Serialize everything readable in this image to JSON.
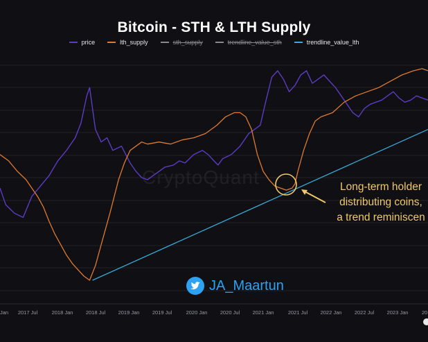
{
  "chart_data": {
    "type": "line",
    "title": "Bitcoin - STH & LTH Supply",
    "legend": [
      {
        "name": "price",
        "color": "#5b3cc4",
        "enabled": true
      },
      {
        "name": "lth_supply",
        "color": "#e07a2f",
        "enabled": true
      },
      {
        "name": "sth_supply",
        "color": "#8a8a8a",
        "enabled": false
      },
      {
        "name": "trendline_value_sth",
        "color": "#8a8a8a",
        "enabled": false
      },
      {
        "name": "trendline_value_lth",
        "color": "#39a9d8",
        "enabled": true
      }
    ],
    "x_ticks": [
      "Jan",
      "2017 Jul",
      "2018 Jan",
      "2018 Jul",
      "2019 Jan",
      "2019 Jul",
      "2020 Jan",
      "2020 Jul",
      "2021 Jan",
      "2021 Jul",
      "2022 Jan",
      "2022 Jul",
      "2023 Jan",
      "20"
    ],
    "x_range": [
      2016.45,
      2023.85
    ],
    "y_range": [
      0,
      1
    ],
    "series": [
      {
        "name": "price",
        "x": [
          2016.45,
          2016.55,
          2016.7,
          2016.85,
          2017.0,
          2017.15,
          2017.3,
          2017.45,
          2017.6,
          2017.75,
          2017.85,
          2017.95,
          2018.0,
          2018.05,
          2018.1,
          2018.2,
          2018.3,
          2018.4,
          2018.55,
          2018.7,
          2018.8,
          2018.9,
          2019.0,
          2019.1,
          2019.2,
          2019.3,
          2019.45,
          2019.55,
          2019.65,
          2019.8,
          2019.95,
          2020.05,
          2020.15,
          2020.22,
          2020.3,
          2020.45,
          2020.6,
          2020.75,
          2020.85,
          2020.95,
          2021.05,
          2021.15,
          2021.25,
          2021.35,
          2021.45,
          2021.55,
          2021.65,
          2021.75,
          2021.85,
          2021.95,
          2022.05,
          2022.15,
          2022.25,
          2022.35,
          2022.45,
          2022.55,
          2022.65,
          2022.75,
          2022.85,
          2022.95,
          2023.05,
          2023.15,
          2023.25,
          2023.35,
          2023.45,
          2023.55,
          2023.65,
          2023.75,
          2023.85
        ],
        "y": [
          0.44,
          0.36,
          0.32,
          0.3,
          0.4,
          0.45,
          0.5,
          0.57,
          0.62,
          0.68,
          0.75,
          0.88,
          0.92,
          0.82,
          0.72,
          0.66,
          0.68,
          0.62,
          0.64,
          0.56,
          0.52,
          0.49,
          0.48,
          0.5,
          0.52,
          0.54,
          0.55,
          0.57,
          0.56,
          0.6,
          0.62,
          0.6,
          0.57,
          0.55,
          0.58,
          0.6,
          0.64,
          0.7,
          0.72,
          0.74,
          0.86,
          0.97,
          1.0,
          0.96,
          0.9,
          0.93,
          0.98,
          1.0,
          0.94,
          0.96,
          0.98,
          0.95,
          0.92,
          0.88,
          0.84,
          0.8,
          0.78,
          0.82,
          0.84,
          0.85,
          0.86,
          0.88,
          0.9,
          0.87,
          0.85,
          0.86,
          0.88,
          0.87,
          0.86
        ],
        "color": "#5b3cc4"
      },
      {
        "name": "lth_supply",
        "x": [
          2016.45,
          2016.6,
          2016.75,
          2016.9,
          2017.0,
          2017.1,
          2017.2,
          2017.3,
          2017.4,
          2017.5,
          2017.6,
          2017.7,
          2017.8,
          2017.9,
          2018.0,
          2018.1,
          2018.2,
          2018.35,
          2018.5,
          2018.6,
          2018.7,
          2018.8,
          2018.9,
          2019.0,
          2019.2,
          2019.4,
          2019.6,
          2019.8,
          2020.0,
          2020.2,
          2020.35,
          2020.5,
          2020.6,
          2020.7,
          2020.8,
          2020.9,
          2021.0,
          2021.1,
          2021.2,
          2021.3,
          2021.4,
          2021.5,
          2021.55,
          2021.6,
          2021.7,
          2021.8,
          2021.9,
          2022.0,
          2022.2,
          2022.4,
          2022.6,
          2022.8,
          2023.0,
          2023.2,
          2023.4,
          2023.6,
          2023.75,
          2023.85
        ],
        "y": [
          0.6,
          0.57,
          0.52,
          0.48,
          0.44,
          0.4,
          0.35,
          0.28,
          0.22,
          0.17,
          0.12,
          0.08,
          0.05,
          0.02,
          0.0,
          0.07,
          0.17,
          0.32,
          0.48,
          0.56,
          0.62,
          0.64,
          0.66,
          0.65,
          0.66,
          0.65,
          0.67,
          0.68,
          0.7,
          0.74,
          0.78,
          0.8,
          0.8,
          0.78,
          0.72,
          0.6,
          0.52,
          0.48,
          0.45,
          0.44,
          0.43,
          0.44,
          0.46,
          0.52,
          0.62,
          0.7,
          0.76,
          0.78,
          0.8,
          0.85,
          0.88,
          0.9,
          0.92,
          0.95,
          0.98,
          1.0,
          1.01,
          1.0
        ],
        "color": "#e07a2f"
      },
      {
        "name": "trendline_value_lth",
        "x": [
          2018.05,
          2023.85
        ],
        "y": [
          0.0,
          0.72
        ],
        "color": "#39a9d8"
      }
    ],
    "annotations": [
      {
        "text_lines": [
          "Long-term holder",
          "distributing coins,",
          "a trend reminiscen"
        ]
      }
    ],
    "watermark": "CryptoQuant",
    "handle": "JA_Maartun",
    "grid": true
  }
}
